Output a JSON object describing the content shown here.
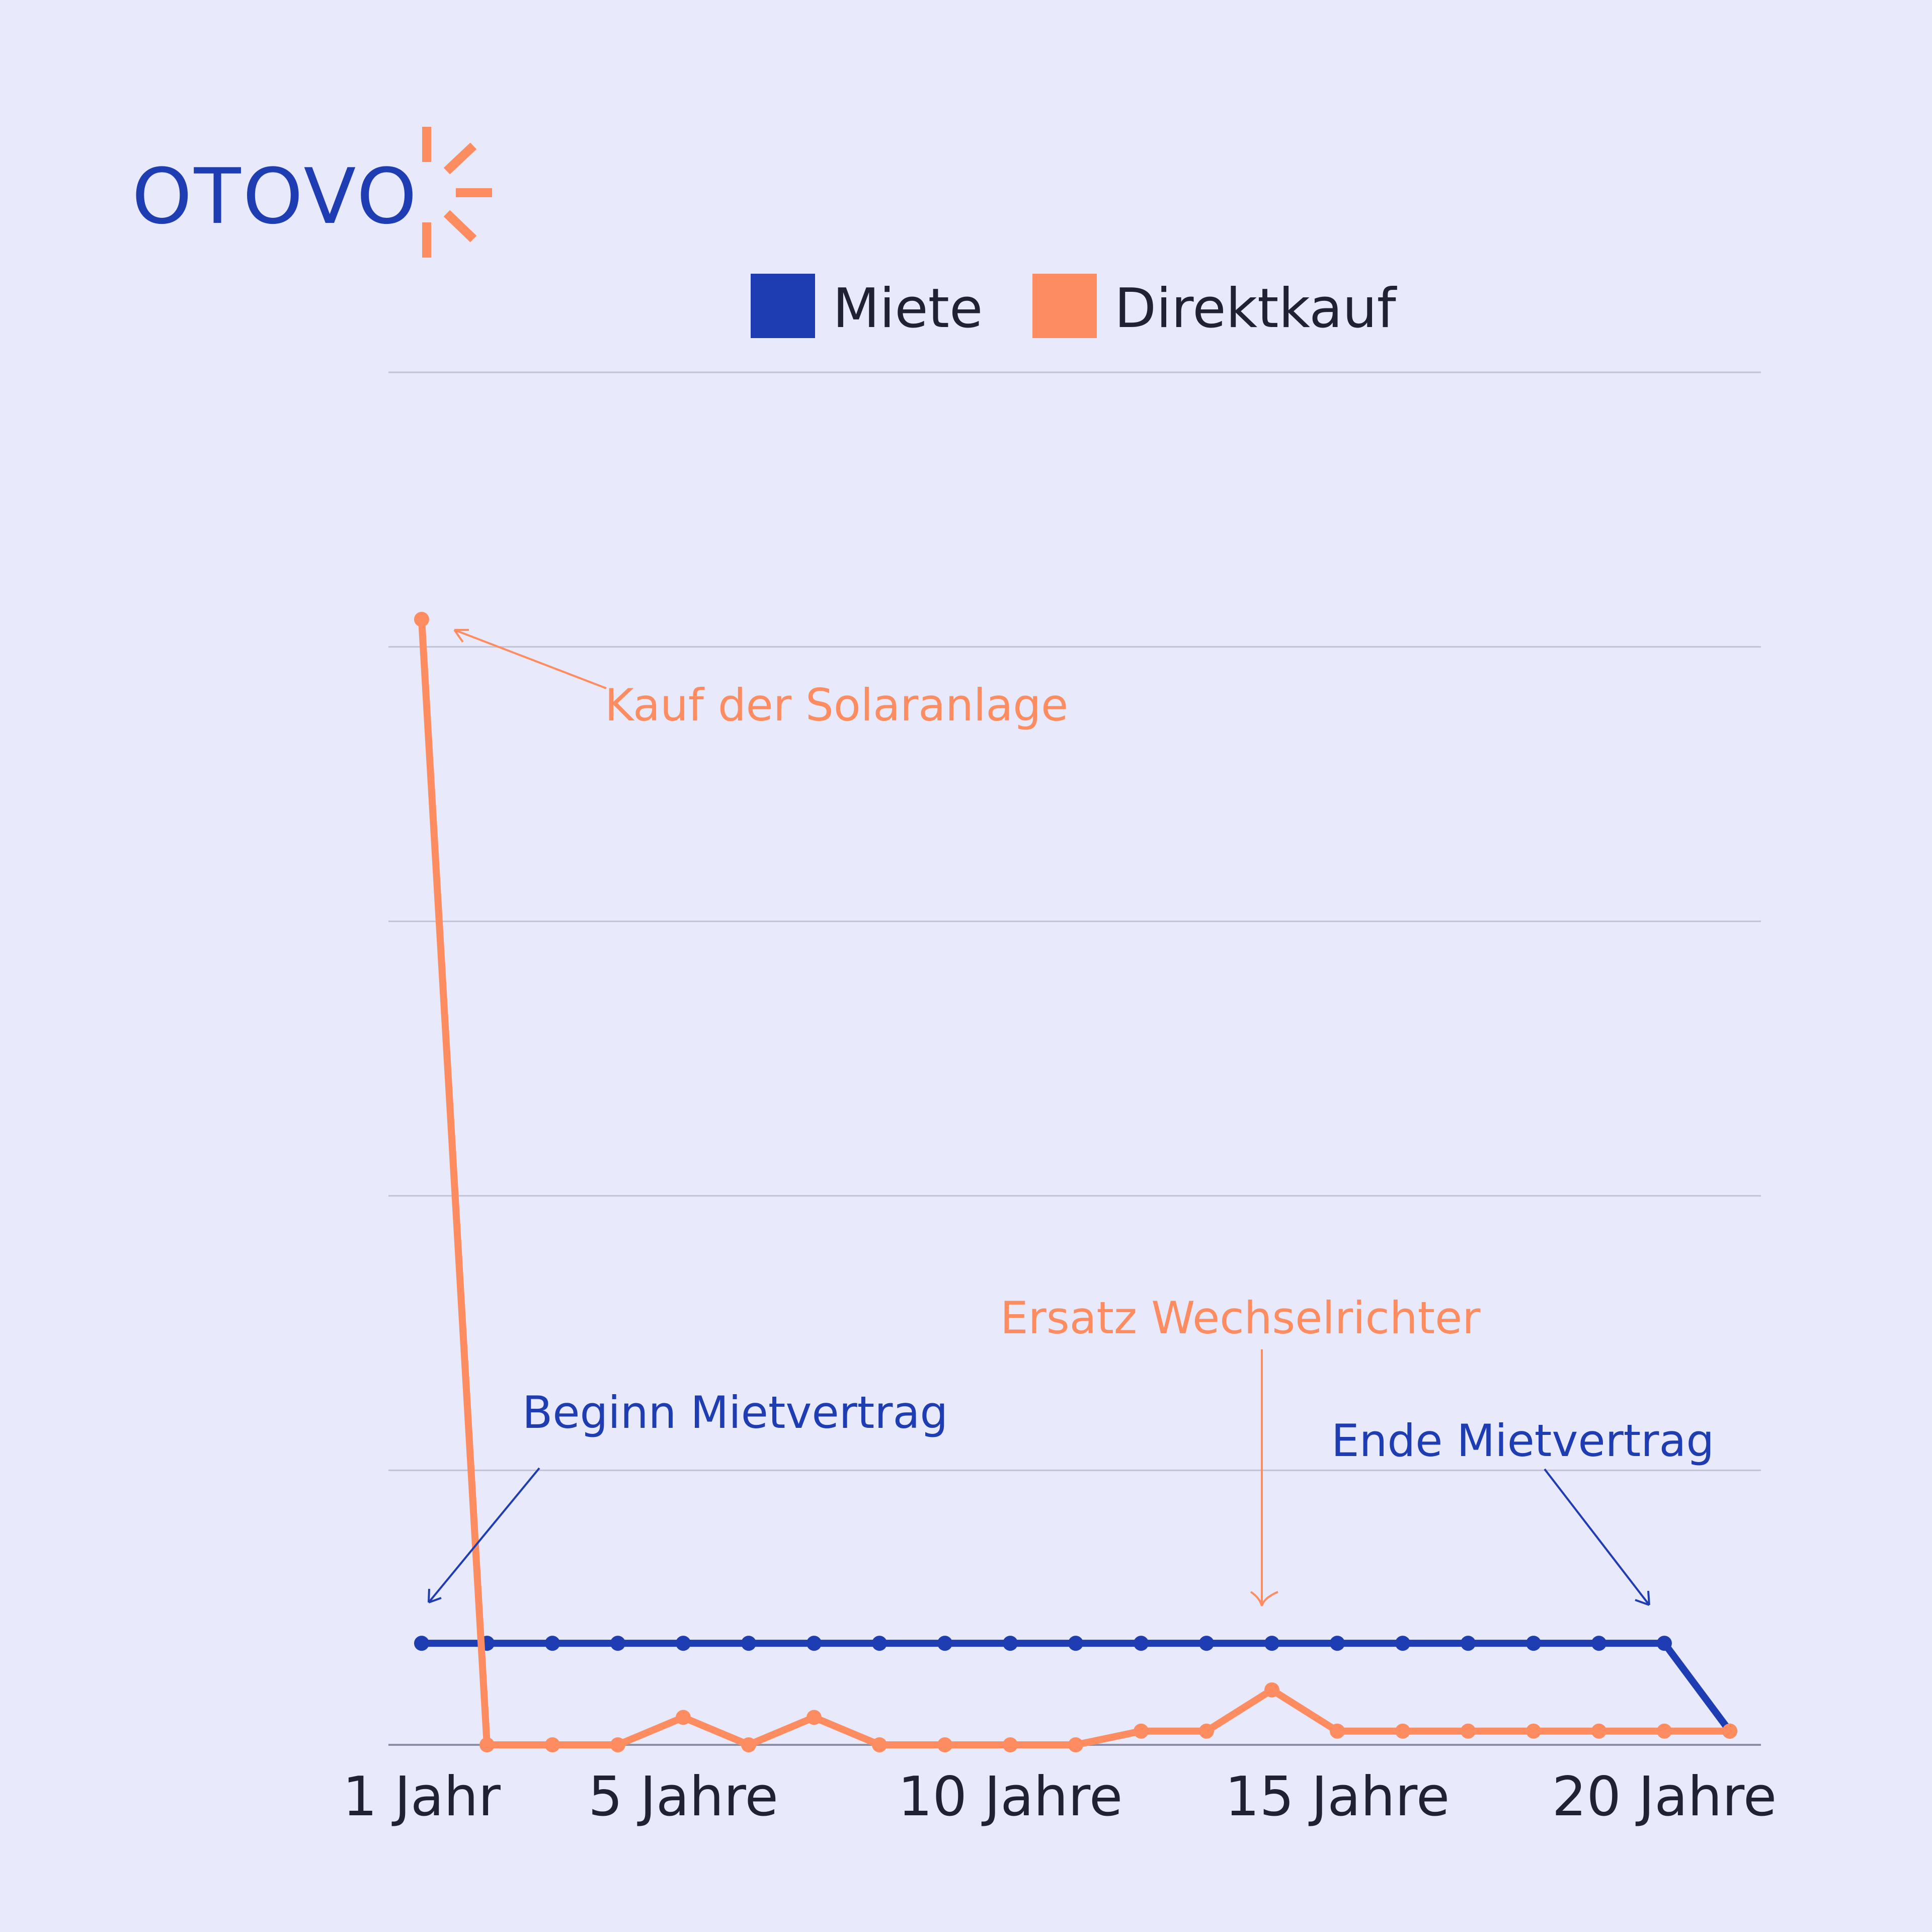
{
  "brand": {
    "logo_text": "OTOVO",
    "logo_icon": "sun-rays-icon"
  },
  "colors": {
    "miete": "#1f3db3",
    "direktkauf": "#fd8c60",
    "background": "#e8e9fb",
    "grid": "#c2c4d6",
    "axis": "#8c8fa6",
    "text": "#1f2233"
  },
  "chart_data": {
    "type": "line",
    "x": [
      1,
      2,
      3,
      4,
      5,
      6,
      7,
      8,
      9,
      10,
      11,
      12,
      13,
      14,
      15,
      16,
      17,
      18,
      19,
      20,
      21
    ],
    "tick_labels": [
      {
        "x": 1,
        "label": "1 Jahr"
      },
      {
        "x": 5,
        "label": "5 Jahre"
      },
      {
        "x": 10,
        "label": "10 Jahre"
      },
      {
        "x": 15,
        "label": "15 Jahre"
      },
      {
        "x": 20,
        "label": "20 Jahre"
      }
    ],
    "ylim": [
      0,
      100
    ],
    "y_gridlines": [
      0,
      20,
      40,
      60,
      80,
      100
    ],
    "grid": true,
    "legend_position": "top-center",
    "series": [
      {
        "name": "Miete",
        "color": "#1f3db3",
        "values": [
          7.4,
          7.4,
          7.4,
          7.4,
          7.4,
          7.4,
          7.4,
          7.4,
          7.4,
          7.4,
          7.4,
          7.4,
          7.4,
          7.4,
          7.4,
          7.4,
          7.4,
          7.4,
          7.4,
          7.4,
          1
        ]
      },
      {
        "name": "Direktkauf",
        "color": "#fd8c60",
        "values": [
          82,
          0,
          0,
          0,
          2,
          0,
          2,
          0,
          0,
          0,
          0,
          1,
          1,
          4,
          1,
          1,
          1,
          1,
          1,
          1,
          1
        ]
      }
    ],
    "annotations": [
      {
        "text": "Kauf der Solaranlage",
        "series": "Direktkauf",
        "x": 1,
        "color": "#fd8c60"
      },
      {
        "text": "Ersatz Wechselrichter",
        "series": "Direktkauf",
        "x": 14,
        "color": "#fd8c60"
      },
      {
        "text": "Beginn Mietvertrag",
        "series": "Miete",
        "x": 1,
        "color": "#1f3db3"
      },
      {
        "text": "Ende Mietvertrag",
        "series": "Miete",
        "x": 20,
        "color": "#1f3db3"
      }
    ]
  }
}
